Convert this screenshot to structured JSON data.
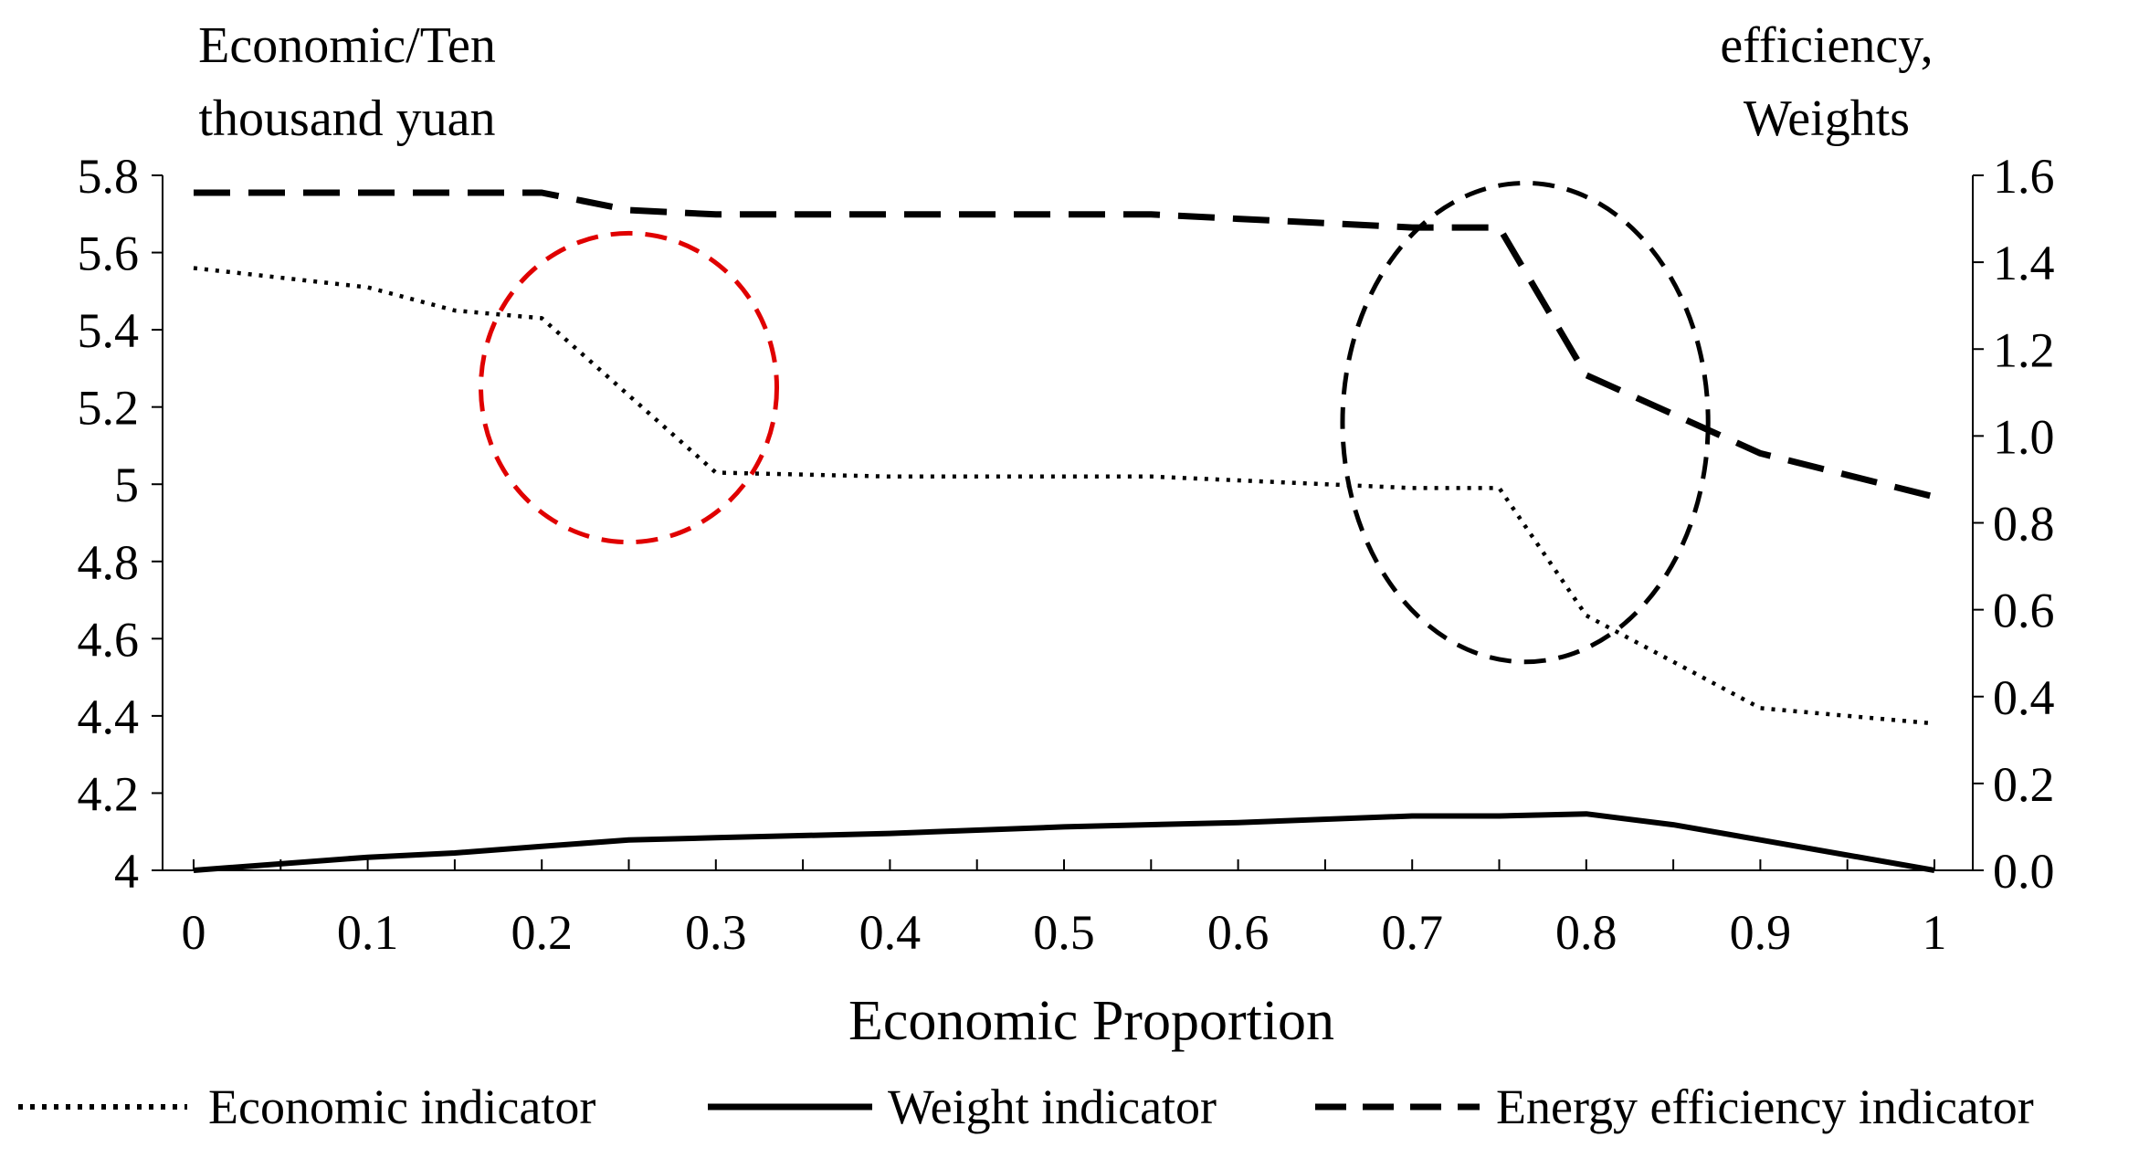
{
  "chart_data": {
    "type": "line",
    "xlabel": "Economic Proportion",
    "y_left_label": [
      "Economic/Ten",
      "thousand yuan"
    ],
    "y_right_label": [
      "efficiency,",
      "Weights"
    ],
    "xlim": [
      0,
      1
    ],
    "x_ticks": [
      0,
      0.1,
      0.2,
      0.3,
      0.4,
      0.5,
      0.6,
      0.7,
      0.8,
      0.9,
      1
    ],
    "x_tick_labels": [
      "0",
      "0.1",
      "0.2",
      "0.3",
      "0.4",
      "0.5",
      "0.6",
      "0.7",
      "0.8",
      "0.9",
      "1"
    ],
    "ylim_left": [
      4,
      5.8
    ],
    "y_left_ticks": [
      4,
      4.2,
      4.4,
      4.6,
      4.8,
      5,
      5.2,
      5.4,
      5.6,
      5.8
    ],
    "y_left_tick_labels": [
      "4",
      "4.2",
      "4.4",
      "4.6",
      "4.8",
      "5",
      "5.2",
      "5.4",
      "5.6",
      "5.8"
    ],
    "ylim_right": [
      0,
      1.6
    ],
    "y_right_ticks": [
      0,
      0.2,
      0.4,
      0.6,
      0.8,
      1.0,
      1.2,
      1.4,
      1.6
    ],
    "y_right_tick_labels": [
      "0.0",
      "0.2",
      "0.4",
      "0.6",
      "0.8",
      "1.0",
      "1.2",
      "1.4",
      "1.6"
    ],
    "legend_position": "bottom",
    "series": [
      {
        "name": "Economic indicator",
        "axis": "left",
        "style": "dotted",
        "x": [
          0,
          0.1,
          0.15,
          0.2,
          0.3,
          0.4,
          0.5,
          0.55,
          0.6,
          0.7,
          0.75,
          0.8,
          0.9,
          1
        ],
        "y": [
          5.56,
          5.51,
          5.45,
          5.43,
          5.03,
          5.02,
          5.02,
          5.02,
          5.01,
          4.99,
          4.99,
          4.66,
          4.42,
          4.38
        ]
      },
      {
        "name": "Weight indicator",
        "axis": "right",
        "style": "solid",
        "x": [
          0,
          0.1,
          0.15,
          0.2,
          0.25,
          0.3,
          0.4,
          0.5,
          0.6,
          0.7,
          0.75,
          0.8,
          0.85,
          0.9,
          1
        ],
        "y": [
          0.0,
          0.03,
          0.04,
          0.055,
          0.07,
          0.075,
          0.085,
          0.1,
          0.11,
          0.125,
          0.125,
          0.13,
          0.105,
          0.07,
          0.0
        ]
      },
      {
        "name": "Energy efficiency indicator",
        "axis": "right",
        "style": "dashed",
        "x": [
          0,
          0.1,
          0.2,
          0.25,
          0.3,
          0.4,
          0.5,
          0.55,
          0.6,
          0.7,
          0.75,
          0.8,
          0.85,
          0.9,
          1
        ],
        "y": [
          1.56,
          1.56,
          1.56,
          1.52,
          1.51,
          1.51,
          1.51,
          1.51,
          1.5,
          1.48,
          1.48,
          1.14,
          1.05,
          0.96,
          0.86
        ]
      }
    ],
    "annotations": [
      {
        "shape": "ellipse",
        "color": "#e00000",
        "style": "dashed",
        "cx": 0.25,
        "cy_left": 5.25,
        "rx": 0.085,
        "ry_left": 0.4
      },
      {
        "shape": "ellipse",
        "color": "#000000",
        "style": "dashed",
        "cx": 0.765,
        "cy_left": 5.16,
        "rx": 0.105,
        "ry_left": 0.62
      }
    ]
  }
}
